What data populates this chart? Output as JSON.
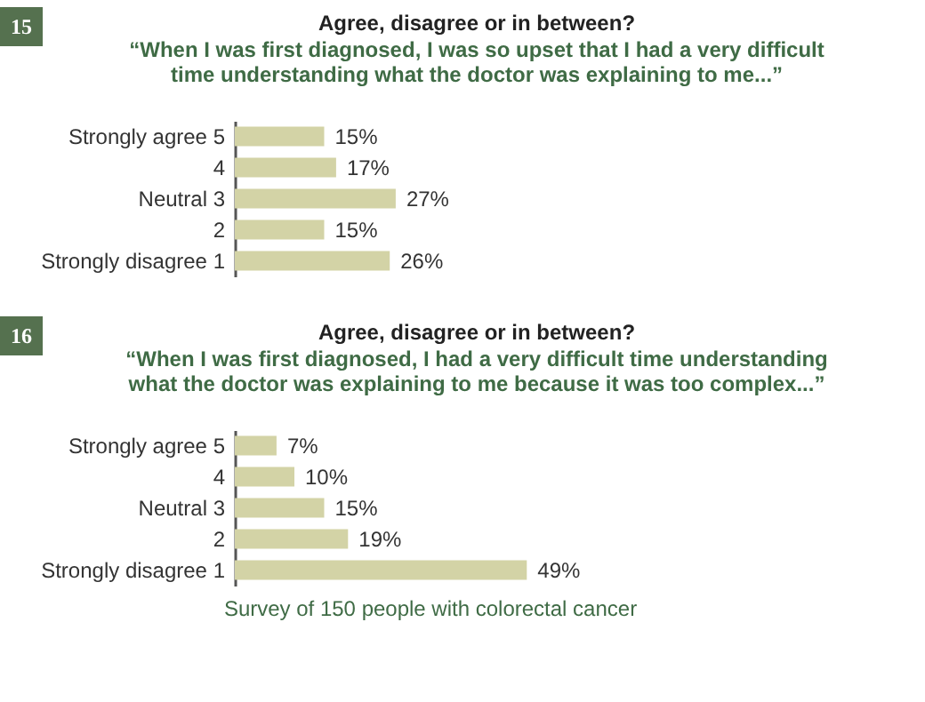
{
  "chart_data": [
    {
      "type": "bar",
      "orientation": "horizontal",
      "title": "Agree, disagree or in between?",
      "subtitle": "“When I was first diagnosed, I was so upset that I had a very difficult time understanding what the doctor was explaining to me...”",
      "categories": [
        "Strongly agree 5",
        "4",
        "Neutral 3",
        "2",
        "Strongly disagree 1"
      ],
      "values": [
        15,
        17,
        27,
        15,
        26
      ],
      "color": "#d3d3a6",
      "value_labels": [
        "15%",
        "17%",
        "27%",
        "15%",
        "26%"
      ],
      "annotations": [
        "15"
      ]
    },
    {
      "type": "bar",
      "orientation": "horizontal",
      "title": "Agree, disagree or in between?",
      "subtitle": "“When I was first diagnosed, I had a very difficult time understanding what the doctor was explaining to me because it was too complex...”",
      "categories": [
        "Strongly agree 5",
        "4",
        "Neutral 3",
        "2",
        "Strongly disagree 1"
      ],
      "values": [
        7,
        10,
        15,
        19,
        49
      ],
      "color": "#d3d3a6",
      "value_labels": [
        "7%",
        "10%",
        "15%",
        "19%",
        "49%"
      ],
      "annotations": [
        "16",
        "Survey of 150 people with colorectal cancer"
      ]
    }
  ]
}
